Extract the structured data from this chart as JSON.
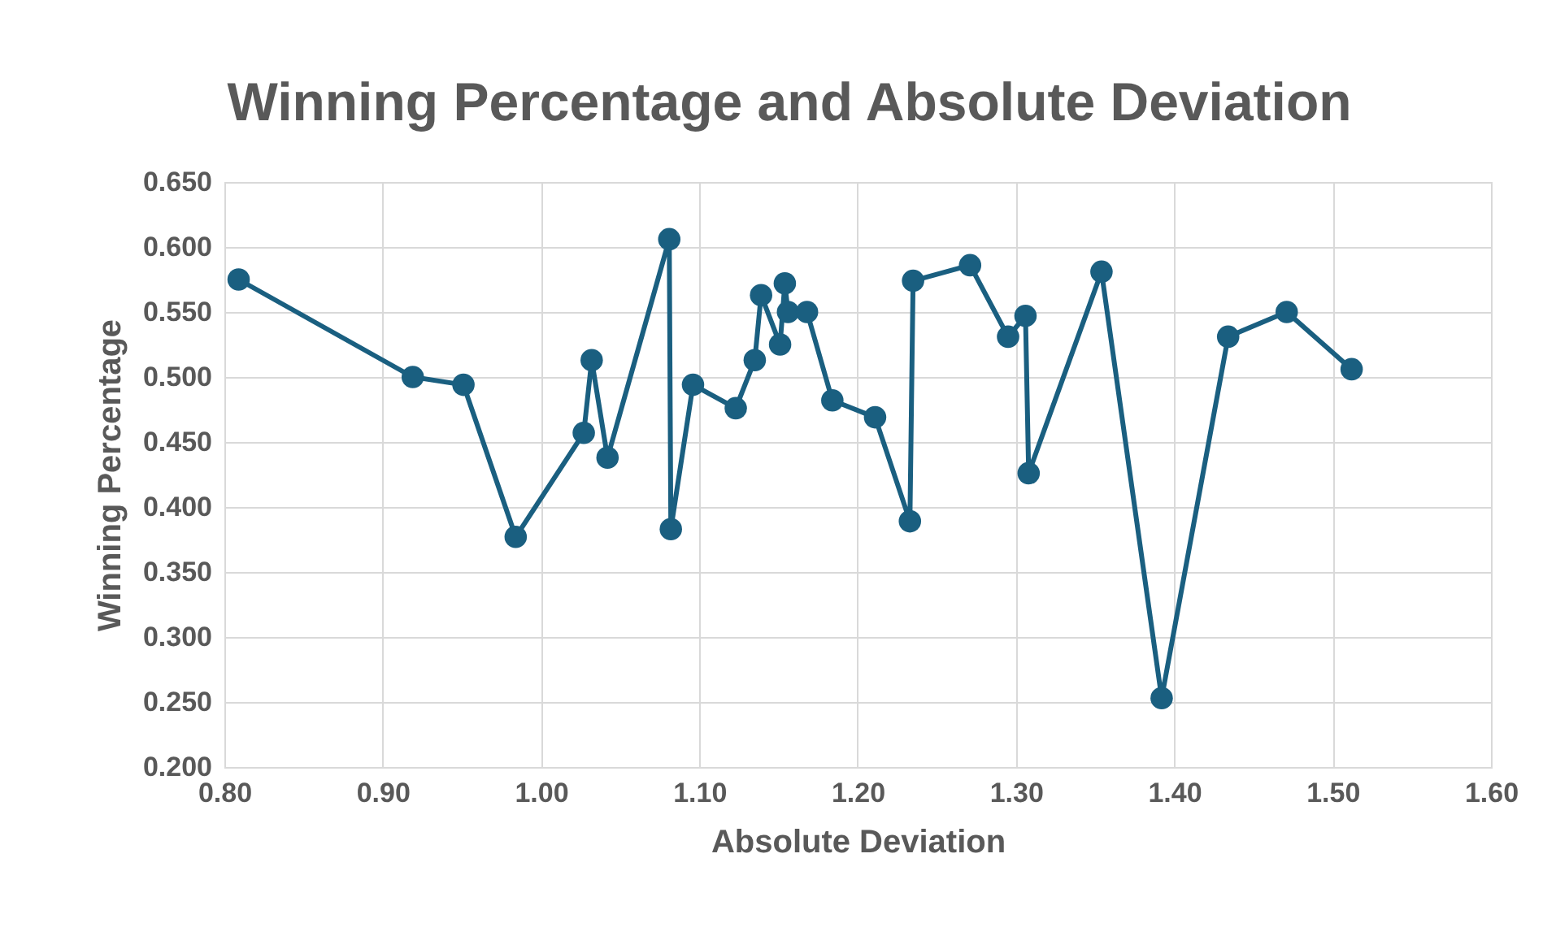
{
  "chart_data": {
    "type": "line",
    "title": "Winning Percentage and Absolute Deviation",
    "xlabel": "Absolute Deviation",
    "ylabel": "Winning Percentage",
    "x": [
      0.809,
      0.919,
      0.951,
      0.984,
      1.027,
      1.032,
      1.042,
      1.081,
      1.082,
      1.096,
      1.123,
      1.135,
      1.139,
      1.151,
      1.154,
      1.156,
      1.168,
      1.184,
      1.211,
      1.233,
      1.235,
      1.271,
      1.295,
      1.306,
      1.308,
      1.354,
      1.392,
      1.434,
      1.471,
      1.512
    ],
    "series": [
      {
        "color": "#1a5f80",
        "values": [
          0.575,
          0.5,
          0.494,
          0.377,
          0.457,
          0.513,
          0.438,
          0.606,
          0.383,
          0.494,
          0.476,
          0.513,
          0.563,
          0.525,
          0.572,
          0.55,
          0.55,
          0.482,
          0.469,
          0.389,
          0.574,
          0.586,
          0.531,
          0.547,
          0.426,
          0.581,
          0.253,
          0.531,
          0.55,
          0.506
        ]
      }
    ],
    "xlim": [
      0.8,
      1.6
    ],
    "xticks": [
      {
        "value": 0.8,
        "label": "0.80"
      },
      {
        "value": 0.9,
        "label": "0.90"
      },
      {
        "value": 1.0,
        "label": "1.00"
      },
      {
        "value": 1.1,
        "label": "1.10"
      },
      {
        "value": 1.2,
        "label": "1.20"
      },
      {
        "value": 1.3,
        "label": "1.30"
      },
      {
        "value": 1.4,
        "label": "1.40"
      },
      {
        "value": 1.5,
        "label": "1.50"
      },
      {
        "value": 1.6,
        "label": "1.60"
      }
    ],
    "ylim": [
      0.2,
      0.65
    ],
    "yticks": [
      {
        "value": 0.2,
        "label": "0.200"
      },
      {
        "value": 0.25,
        "label": "0.250"
      },
      {
        "value": 0.3,
        "label": "0.300"
      },
      {
        "value": 0.35,
        "label": "0.350"
      },
      {
        "value": 0.4,
        "label": "0.400"
      },
      {
        "value": 0.45,
        "label": "0.450"
      },
      {
        "value": 0.5,
        "label": "0.500"
      },
      {
        "value": 0.55,
        "label": "0.550"
      },
      {
        "value": 0.6,
        "label": "0.600"
      },
      {
        "value": 0.65,
        "label": "0.650"
      }
    ],
    "grid": true,
    "marker": "circle",
    "line_style": "solid"
  }
}
